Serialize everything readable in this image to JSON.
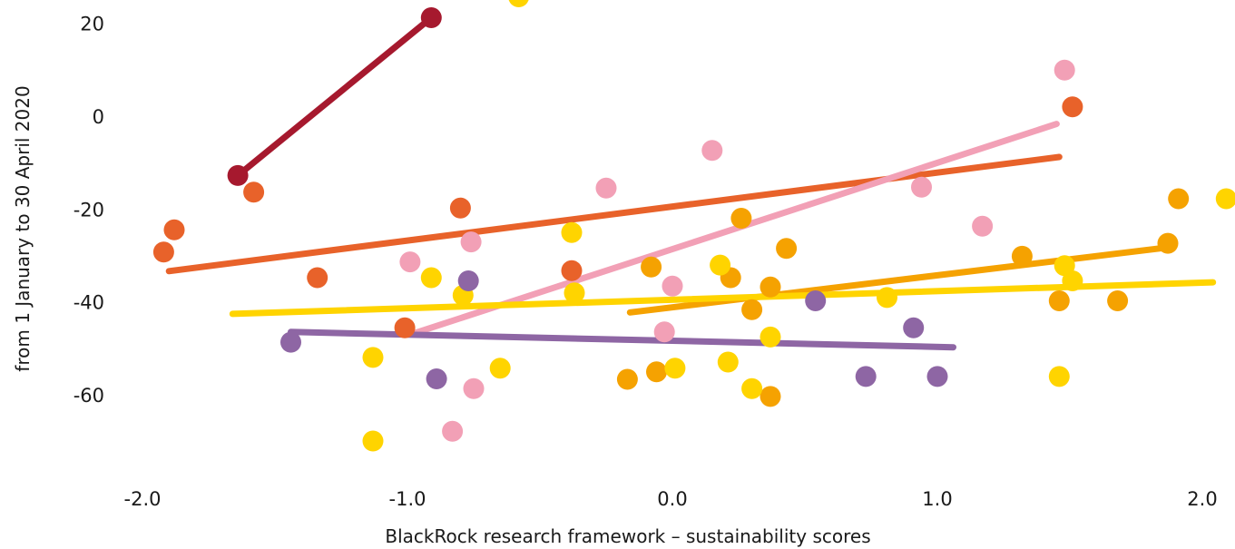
{
  "chart_data": {
    "type": "scatter",
    "xlabel": "BlackRock research framework – sustainability scores",
    "ylabel": "from 1 January to 30 April 2020",
    "xlim": [
      -2.0,
      2.0
    ],
    "ylim": [
      -75,
      25
    ],
    "x_ticks": [
      "-2.0",
      "-1.0",
      "0.0",
      "1.0",
      "2.0"
    ],
    "y_ticks": [
      "20",
      "0",
      "-20",
      "-40",
      "-60"
    ],
    "grid": false,
    "legend": "none",
    "series": [
      {
        "color": "#a6192e",
        "points": [
          [
            -1.64,
            -12.6
          ],
          [
            -0.91,
            21.4
          ]
        ],
        "trend": [
          [
            -1.64,
            -12.6
          ],
          [
            -0.91,
            21.4
          ]
        ]
      },
      {
        "color": "#e8622a",
        "points": [
          [
            -1.92,
            -29.1
          ],
          [
            -1.88,
            -24.3
          ],
          [
            -1.58,
            -16.2
          ],
          [
            -1.34,
            -34.6
          ],
          [
            -1.01,
            -45.4
          ],
          [
            -0.8,
            -19.6
          ],
          [
            -0.38,
            -33.1
          ],
          [
            1.51,
            2.2
          ]
        ],
        "trend": [
          [
            -1.9,
            -33.2
          ],
          [
            1.46,
            -8.6
          ]
        ]
      },
      {
        "color": "#f2a0b6",
        "points": [
          [
            -0.99,
            -31.2
          ],
          [
            -0.76,
            -26.9
          ],
          [
            -0.75,
            -58.5
          ],
          [
            -0.83,
            -67.7
          ],
          [
            -0.25,
            -15.3
          ],
          [
            -0.03,
            -46.3
          ],
          [
            0.0,
            -36.4
          ],
          [
            0.15,
            -7.2
          ],
          [
            0.94,
            -15.1
          ],
          [
            1.17,
            -23.5
          ],
          [
            1.48,
            10.1
          ]
        ],
        "trend": [
          [
            -0.97,
            -46.5
          ],
          [
            1.45,
            -1.5
          ]
        ]
      },
      {
        "color": "#f5a201",
        "points": [
          [
            -0.17,
            -56.5
          ],
          [
            -0.08,
            -32.3
          ],
          [
            -0.06,
            -54.9
          ],
          [
            0.26,
            -21.8
          ],
          [
            0.3,
            -41.5
          ],
          [
            0.22,
            -34.6
          ],
          [
            0.37,
            -36.6
          ],
          [
            0.37,
            -60.2
          ],
          [
            0.43,
            -28.3
          ],
          [
            1.32,
            -30.0
          ],
          [
            1.46,
            -39.6
          ],
          [
            1.68,
            -39.6
          ],
          [
            1.87,
            -27.2
          ],
          [
            1.91,
            -17.6
          ]
        ],
        "trend": [
          [
            -0.16,
            -42.1
          ],
          [
            1.87,
            -28.1
          ]
        ]
      },
      {
        "color": "#ffd400",
        "points": [
          [
            -1.13,
            -51.8
          ],
          [
            -1.13,
            -69.8
          ],
          [
            -0.91,
            -34.6
          ],
          [
            -0.79,
            -38.4
          ],
          [
            -0.65,
            -54.1
          ],
          [
            -0.58,
            25.9
          ],
          [
            -0.38,
            -24.9
          ],
          [
            -0.37,
            -37.9
          ],
          [
            0.01,
            -54.1
          ],
          [
            0.18,
            -31.9
          ],
          [
            0.21,
            -52.8
          ],
          [
            0.3,
            -58.5
          ],
          [
            0.37,
            -47.4
          ],
          [
            0.81,
            -38.9
          ],
          [
            1.46,
            -55.9
          ],
          [
            1.48,
            -32.0
          ],
          [
            1.51,
            -35.3
          ],
          [
            2.09,
            -17.6
          ]
        ],
        "trend": [
          [
            -1.66,
            -42.4
          ],
          [
            2.04,
            -35.6
          ]
        ]
      },
      {
        "color": "#8e66a4",
        "points": [
          [
            -1.44,
            -48.5
          ],
          [
            -0.89,
            -56.4
          ],
          [
            -0.77,
            -35.3
          ],
          [
            0.54,
            -39.6
          ],
          [
            0.73,
            -55.9
          ],
          [
            0.91,
            -45.4
          ],
          [
            1.0,
            -55.9
          ]
        ],
        "trend": [
          [
            -1.44,
            -46.3
          ],
          [
            1.06,
            -49.6
          ]
        ]
      }
    ]
  }
}
